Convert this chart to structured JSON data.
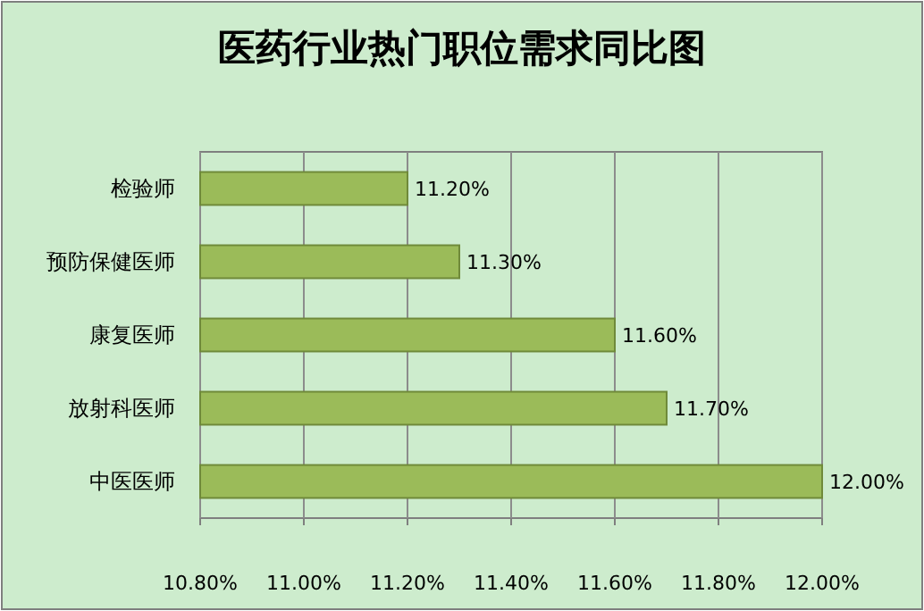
{
  "chart_data": {
    "type": "bar",
    "orientation": "horizontal",
    "title": "医药行业热门职位需求同比图",
    "categories": [
      "检验师",
      "预防保健医师",
      "康复医师",
      "放射科医师",
      "中医医师"
    ],
    "values": [
      11.2,
      11.3,
      11.6,
      11.7,
      12.0
    ],
    "value_labels": [
      "11.20%",
      "11.30%",
      "11.60%",
      "11.70%",
      "12.00%"
    ],
    "color": "#9bbb59",
    "xlim": [
      10.8,
      12.0
    ],
    "xticks": [
      {
        "value": 10.8,
        "label": "10.80%"
      },
      {
        "value": 11.0,
        "label": "11.00%"
      },
      {
        "value": 11.2,
        "label": "11.20%"
      },
      {
        "value": 11.4,
        "label": "11.40%"
      },
      {
        "value": 11.6,
        "label": "11.60%"
      },
      {
        "value": 11.8,
        "label": "11.80%"
      },
      {
        "value": 12.0,
        "label": "12.00%"
      }
    ],
    "grid": "x"
  }
}
